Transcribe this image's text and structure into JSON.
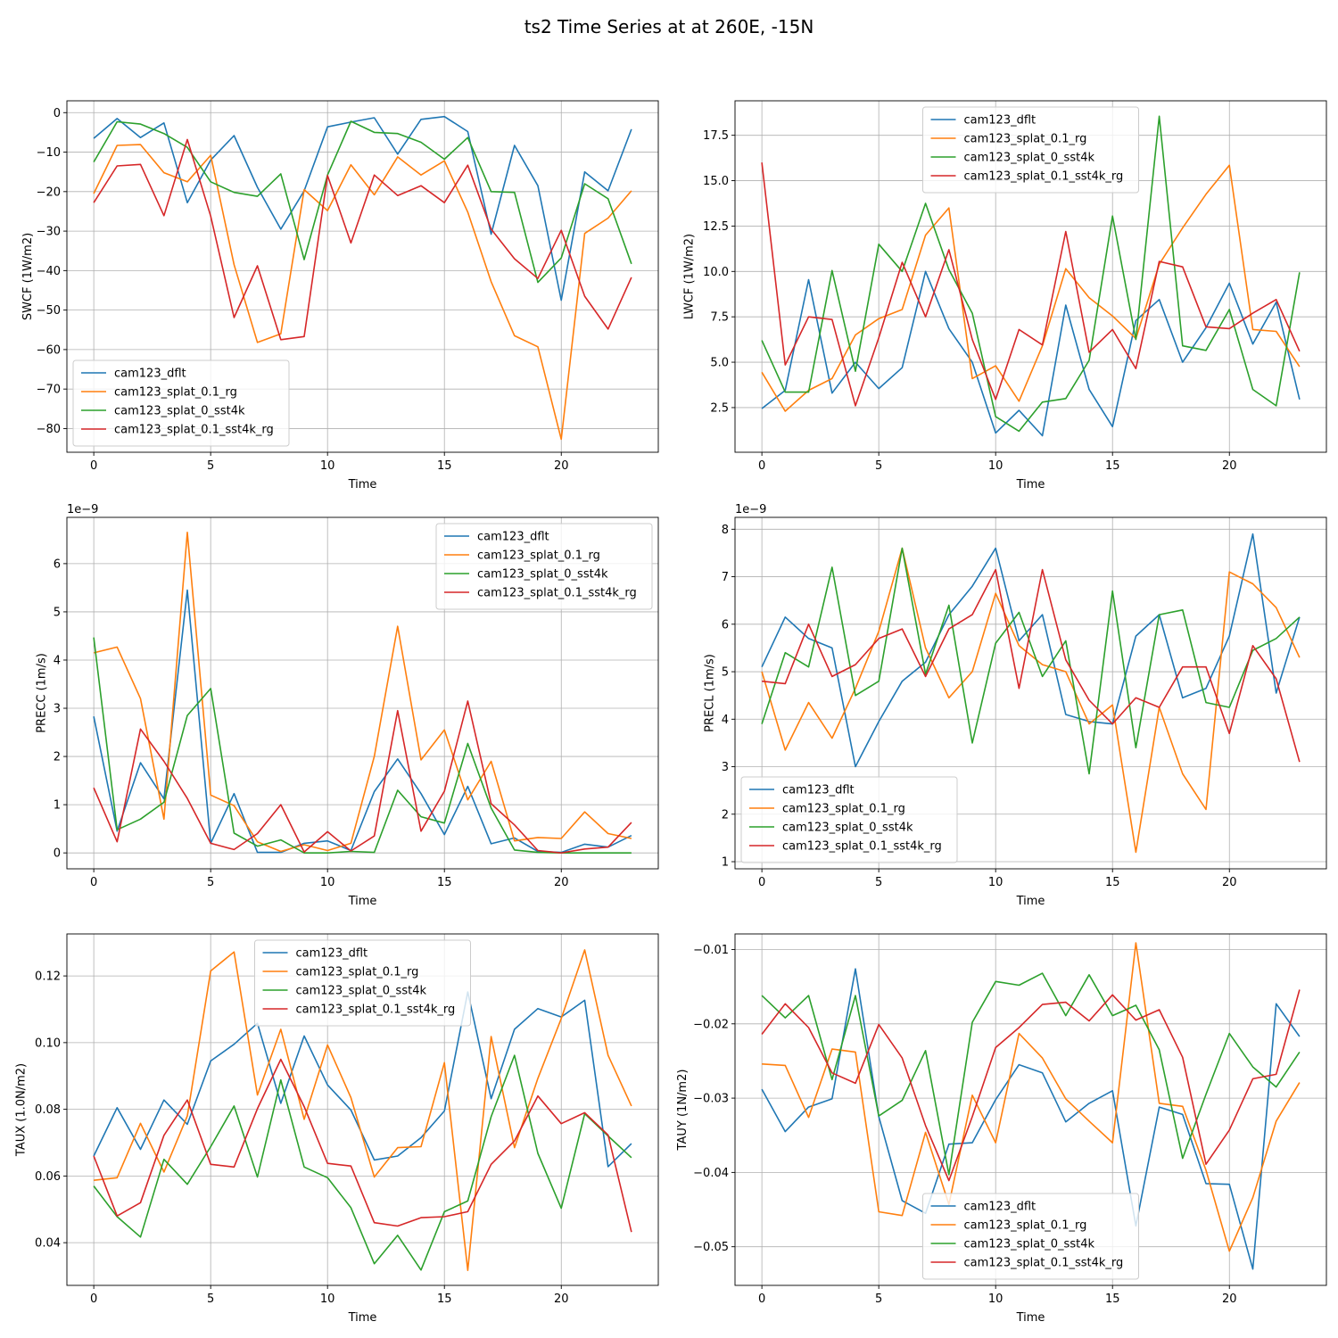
{
  "figure_title": "ts2 Time Series at at 260E, -15N",
  "colors": {
    "cam123_dflt": "#1f77b4",
    "cam123_splat_0.1_rg": "#ff7f0e",
    "cam123_splat_0_sst4k": "#2ca02c",
    "cam123_splat_0.1_sst4k_rg": "#d62728"
  },
  "chart_data": [
    {
      "type": "line",
      "title": "",
      "xlabel": "Time",
      "ylabel": "SWCF (1W/m2)",
      "xlim": [
        -1.15,
        24.15
      ],
      "ylim": [
        -86,
        3
      ],
      "xticks": [
        0,
        5,
        10,
        15,
        20
      ],
      "xtick_labels": [
        "0",
        "5",
        "10",
        "15",
        "20"
      ],
      "yticks": [
        0,
        -10,
        -20,
        -30,
        -40,
        -50,
        -60,
        -70,
        -80
      ],
      "ytick_labels": [
        "0",
        "−10",
        "−20",
        "−30",
        "−40",
        "−50",
        "−60",
        "−70",
        "−80"
      ],
      "offset_text": "",
      "legend_loc": "lower-left",
      "x": [
        0,
        1,
        2,
        3,
        4,
        5,
        6,
        7,
        8,
        9,
        10,
        11,
        12,
        13,
        14,
        15,
        16,
        17,
        18,
        19,
        20,
        21,
        22,
        23
      ],
      "series": [
        {
          "name": "cam123_dflt",
          "values": [
            -6.5,
            -1.5,
            -6.3,
            -2.6,
            -22.8,
            -12.0,
            -5.8,
            -18.9,
            -29.5,
            -19.8,
            -3.6,
            -2.4,
            -1.3,
            -10.5,
            -1.7,
            -1.0,
            -4.8,
            -30.8,
            -8.3,
            -18.5,
            -47.5,
            -15.0,
            -19.8,
            -4.2
          ]
        },
        {
          "name": "cam123_splat_0.1_rg",
          "values": [
            -20.5,
            -8.3,
            -8.1,
            -15.2,
            -17.5,
            -10.8,
            -38.5,
            -58.2,
            -56.0,
            -19.5,
            -24.8,
            -13.2,
            -20.8,
            -11.2,
            -15.8,
            -12.2,
            -25.2,
            -42.8,
            -56.5,
            -59.3,
            -82.7,
            -30.6,
            -26.7,
            -19.8
          ]
        },
        {
          "name": "cam123_splat_0_sst4k",
          "values": [
            -12.5,
            -2.3,
            -2.9,
            -5.3,
            -8.8,
            -17.5,
            -20.2,
            -21.2,
            -15.5,
            -37.2,
            -15.8,
            -2.2,
            -5.0,
            -5.3,
            -7.5,
            -11.8,
            -6.3,
            -20.0,
            -20.2,
            -43.0,
            -36.8,
            -18.0,
            -21.8,
            -38.3
          ]
        },
        {
          "name": "cam123_splat_0.1_sst4k_rg",
          "values": [
            -22.8,
            -13.5,
            -13.1,
            -26.1,
            -6.8,
            -26.2,
            -51.9,
            -38.8,
            -57.5,
            -56.7,
            -15.9,
            -33.0,
            -15.8,
            -21.0,
            -18.5,
            -22.8,
            -13.3,
            -29.5,
            -37.0,
            -42.0,
            -29.8,
            -46.5,
            -54.8,
            -41.7
          ]
        }
      ]
    },
    {
      "type": "line",
      "title": "",
      "xlabel": "Time",
      "ylabel": "LWCF (1W/m2)",
      "xlim": [
        -1.15,
        24.15
      ],
      "ylim": [
        0.04,
        19.4
      ],
      "xticks": [
        0,
        5,
        10,
        15,
        20
      ],
      "xtick_labels": [
        "0",
        "5",
        "10",
        "15",
        "20"
      ],
      "yticks": [
        2.5,
        5.0,
        7.5,
        10.0,
        12.5,
        15.0,
        17.5
      ],
      "ytick_labels": [
        "2.5",
        "5.0",
        "7.5",
        "10.0",
        "12.5",
        "15.0",
        "17.5"
      ],
      "offset_text": "",
      "legend_loc": "upper-center",
      "x": [
        0,
        1,
        2,
        3,
        4,
        5,
        6,
        7,
        8,
        9,
        10,
        11,
        12,
        13,
        14,
        15,
        16,
        17,
        18,
        19,
        20,
        21,
        22,
        23
      ],
      "series": [
        {
          "name": "cam123_dflt",
          "values": [
            2.45,
            3.45,
            9.55,
            3.3,
            5.0,
            3.55,
            4.7,
            10.0,
            6.85,
            5.0,
            1.1,
            2.35,
            0.95,
            8.15,
            3.5,
            1.45,
            7.3,
            8.45,
            5.0,
            6.9,
            9.35,
            6.0,
            8.3,
            2.95
          ]
        },
        {
          "name": "cam123_splat_0.1_rg",
          "values": [
            4.45,
            2.3,
            3.45,
            4.1,
            6.5,
            7.4,
            7.9,
            12.0,
            13.5,
            4.1,
            4.8,
            2.85,
            5.9,
            10.15,
            8.55,
            7.55,
            6.3,
            10.4,
            12.4,
            14.25,
            15.85,
            6.8,
            6.7,
            4.75
          ]
        },
        {
          "name": "cam123_splat_0_sst4k",
          "values": [
            6.2,
            3.35,
            3.35,
            10.05,
            4.5,
            11.5,
            10.0,
            13.75,
            10.1,
            7.7,
            2.0,
            1.2,
            2.8,
            3.0,
            5.1,
            13.05,
            6.25,
            18.55,
            5.9,
            5.65,
            7.9,
            3.5,
            2.6,
            9.95
          ]
        },
        {
          "name": "cam123_splat_0.1_sst4k_rg",
          "values": [
            16.0,
            4.85,
            7.5,
            7.35,
            2.6,
            6.35,
            10.5,
            7.5,
            11.2,
            6.25,
            2.95,
            6.8,
            5.95,
            12.2,
            5.55,
            6.8,
            4.65,
            10.55,
            10.25,
            6.95,
            6.85,
            7.7,
            8.45,
            5.6
          ]
        }
      ]
    },
    {
      "type": "line",
      "title": "",
      "xlabel": "Time",
      "ylabel": "PRECC (1m/s)",
      "xlim": [
        -1.15,
        24.15
      ],
      "ylim": [
        -0.33,
        6.96
      ],
      "xticks": [
        0,
        5,
        10,
        15,
        20
      ],
      "xtick_labels": [
        "0",
        "5",
        "10",
        "15",
        "20"
      ],
      "yticks": [
        0,
        1,
        2,
        3,
        4,
        5,
        6
      ],
      "ytick_labels": [
        "0",
        "1",
        "2",
        "3",
        "4",
        "5",
        "6"
      ],
      "offset_text": "1e−9",
      "legend_loc": "upper-right",
      "x": [
        0,
        1,
        2,
        3,
        4,
        5,
        6,
        7,
        8,
        9,
        10,
        11,
        12,
        13,
        14,
        15,
        16,
        17,
        18,
        19,
        20,
        21,
        22,
        23
      ],
      "series": [
        {
          "name": "cam123_dflt",
          "values": [
            2.83,
            0.45,
            1.87,
            1.12,
            5.45,
            0.2,
            1.23,
            0.01,
            0.01,
            0.2,
            0.25,
            0.05,
            1.27,
            1.95,
            1.23,
            0.38,
            1.38,
            0.19,
            0.31,
            0.03,
            0.01,
            0.18,
            0.12,
            0.36
          ]
        },
        {
          "name": "cam123_splat_0.1_rg",
          "values": [
            4.15,
            4.27,
            3.2,
            0.7,
            6.65,
            1.2,
            0.98,
            0.23,
            0.03,
            0.17,
            0.05,
            0.2,
            2.0,
            4.7,
            1.93,
            2.55,
            1.1,
            1.9,
            0.25,
            0.32,
            0.3,
            0.85,
            0.4,
            0.3
          ]
        },
        {
          "name": "cam123_splat_0_sst4k",
          "values": [
            4.47,
            0.48,
            0.7,
            1.05,
            2.85,
            3.41,
            0.41,
            0.14,
            0.27,
            0.0,
            0.0,
            0.03,
            0.01,
            1.3,
            0.75,
            0.62,
            2.27,
            0.93,
            0.06,
            0.01,
            0.0,
            0.0,
            0.0,
            0.0
          ]
        },
        {
          "name": "cam123_splat_0.1_sst4k_rg",
          "values": [
            1.35,
            0.23,
            2.57,
            1.9,
            1.13,
            0.2,
            0.07,
            0.4,
            1.0,
            0.02,
            0.44,
            0.04,
            0.35,
            2.95,
            0.45,
            1.28,
            3.15,
            1.02,
            0.58,
            0.05,
            0.0,
            0.08,
            0.12,
            0.63
          ]
        }
      ]
    },
    {
      "type": "line",
      "title": "",
      "xlabel": "Time",
      "ylabel": "PRECL (1m/s)",
      "xlim": [
        -1.15,
        24.15
      ],
      "ylim": [
        0.85,
        8.25
      ],
      "xticks": [
        0,
        5,
        10,
        15,
        20
      ],
      "xtick_labels": [
        "0",
        "5",
        "10",
        "15",
        "20"
      ],
      "yticks": [
        1,
        2,
        3,
        4,
        5,
        6,
        7,
        8
      ],
      "ytick_labels": [
        "1",
        "2",
        "3",
        "4",
        "5",
        "6",
        "7",
        "8"
      ],
      "offset_text": "1e−9",
      "legend_loc": "lower-left",
      "x": [
        0,
        1,
        2,
        3,
        4,
        5,
        6,
        7,
        8,
        9,
        10,
        11,
        12,
        13,
        14,
        15,
        16,
        17,
        18,
        19,
        20,
        21,
        22,
        23
      ],
      "series": [
        {
          "name": "cam123_dflt",
          "values": [
            5.1,
            6.15,
            5.7,
            5.5,
            3.0,
            3.95,
            4.8,
            5.2,
            6.2,
            6.8,
            7.6,
            5.65,
            6.2,
            4.1,
            3.95,
            3.9,
            5.75,
            6.2,
            4.45,
            4.65,
            5.75,
            7.9,
            4.55,
            6.15
          ]
        },
        {
          "name": "cam123_splat_0.1_rg",
          "values": [
            5.0,
            3.35,
            4.35,
            3.6,
            4.65,
            5.85,
            7.6,
            5.5,
            4.45,
            5.0,
            6.65,
            5.55,
            5.15,
            5.0,
            3.9,
            4.3,
            1.2,
            4.25,
            2.85,
            2.1,
            7.1,
            6.85,
            6.35,
            5.3
          ]
        },
        {
          "name": "cam123_splat_0_sst4k",
          "values": [
            3.9,
            5.4,
            5.1,
            7.2,
            4.5,
            4.8,
            7.6,
            4.95,
            6.4,
            3.5,
            5.6,
            6.25,
            4.9,
            5.65,
            2.85,
            6.7,
            3.4,
            6.2,
            6.3,
            4.35,
            4.25,
            5.45,
            5.7,
            6.15
          ]
        },
        {
          "name": "cam123_splat_0.1_sst4k_rg",
          "values": [
            4.8,
            4.75,
            6.0,
            4.9,
            5.15,
            5.7,
            5.9,
            4.9,
            5.9,
            6.2,
            7.15,
            4.65,
            7.15,
            5.25,
            4.4,
            3.9,
            4.45,
            4.25,
            5.1,
            5.1,
            3.7,
            5.55,
            4.85,
            3.1
          ]
        }
      ]
    },
    {
      "type": "line",
      "title": "",
      "xlabel": "Time",
      "ylabel": "TAUX (1.0N/m2)",
      "xlim": [
        -1.15,
        24.15
      ],
      "ylim": [
        0.0272,
        0.1326
      ],
      "xticks": [
        0,
        5,
        10,
        15,
        20
      ],
      "xtick_labels": [
        "0",
        "5",
        "10",
        "15",
        "20"
      ],
      "yticks": [
        0.04,
        0.06,
        0.08,
        0.1,
        0.12
      ],
      "ytick_labels": [
        "0.04",
        "0.06",
        "0.08",
        "0.10",
        "0.12"
      ],
      "offset_text": "",
      "legend_loc": "upper-center",
      "x": [
        0,
        1,
        2,
        3,
        4,
        5,
        6,
        7,
        8,
        9,
        10,
        11,
        12,
        13,
        14,
        15,
        16,
        17,
        18,
        19,
        20,
        21,
        22,
        23
      ],
      "series": [
        {
          "name": "cam123_dflt",
          "values": [
            0.066,
            0.0805,
            0.068,
            0.0828,
            0.0755,
            0.0945,
            0.0995,
            0.1058,
            0.0818,
            0.102,
            0.0873,
            0.0798,
            0.0648,
            0.066,
            0.0715,
            0.0795,
            0.1152,
            0.0832,
            0.104,
            0.1102,
            0.1077,
            0.1127,
            0.0628,
            0.0697
          ]
        },
        {
          "name": "cam123_splat_0.1_rg",
          "values": [
            0.0587,
            0.0595,
            0.0758,
            0.0612,
            0.078,
            0.1215,
            0.1272,
            0.0843,
            0.104,
            0.077,
            0.0993,
            0.0835,
            0.0597,
            0.0685,
            0.0688,
            0.094,
            0.0317,
            0.1018,
            0.0685,
            0.0893,
            0.1072,
            0.1278,
            0.0962,
            0.081
          ]
        },
        {
          "name": "cam123_splat_0_sst4k",
          "values": [
            0.057,
            0.0478,
            0.0417,
            0.065,
            0.0575,
            0.0688,
            0.081,
            0.0597,
            0.0888,
            0.0627,
            0.0595,
            0.0505,
            0.0337,
            0.0422,
            0.0318,
            0.0493,
            0.0525,
            0.0778,
            0.0962,
            0.0668,
            0.0503,
            0.0787,
            0.072,
            0.0655
          ]
        },
        {
          "name": "cam123_splat_0.1_sst4k_rg",
          "values": [
            0.066,
            0.048,
            0.052,
            0.0722,
            0.0828,
            0.0635,
            0.0627,
            0.0802,
            0.095,
            0.0808,
            0.0638,
            0.063,
            0.046,
            0.045,
            0.0475,
            0.0478,
            0.0493,
            0.0635,
            0.0705,
            0.084,
            0.0757,
            0.079,
            0.0723,
            0.0432
          ]
        }
      ]
    },
    {
      "type": "line",
      "title": "",
      "xlabel": "Time",
      "ylabel": "TAUY (1N/m2)",
      "xlim": [
        -1.15,
        24.15
      ],
      "ylim": [
        -0.0552,
        -0.0079
      ],
      "xticks": [
        0,
        5,
        10,
        15,
        20
      ],
      "xtick_labels": [
        "0",
        "5",
        "10",
        "15",
        "20"
      ],
      "yticks": [
        -0.01,
        -0.02,
        -0.03,
        -0.04,
        -0.05
      ],
      "ytick_labels": [
        "−0.01",
        "−0.02",
        "−0.03",
        "−0.04",
        "−0.05"
      ],
      "offset_text": "",
      "legend_loc": "lower-center",
      "x": [
        0,
        1,
        2,
        3,
        4,
        5,
        6,
        7,
        8,
        9,
        10,
        11,
        12,
        13,
        14,
        15,
        16,
        17,
        18,
        19,
        20,
        21,
        22,
        23
      ],
      "series": [
        {
          "name": "cam123_dflt",
          "values": [
            -0.0288,
            -0.0345,
            -0.0312,
            -0.0301,
            -0.0126,
            -0.0325,
            -0.0438,
            -0.0455,
            -0.0362,
            -0.036,
            -0.0302,
            -0.0255,
            -0.0266,
            -0.0332,
            -0.0307,
            -0.029,
            -0.0472,
            -0.0312,
            -0.0322,
            -0.0415,
            -0.0416,
            -0.053,
            -0.0173,
            -0.0217
          ]
        },
        {
          "name": "cam123_splat_0.1_rg",
          "values": [
            -0.0254,
            -0.0256,
            -0.0326,
            -0.0234,
            -0.0238,
            -0.0453,
            -0.0458,
            -0.0346,
            -0.0443,
            -0.0296,
            -0.036,
            -0.0213,
            -0.0246,
            -0.0301,
            -0.0331,
            -0.036,
            -0.0091,
            -0.0307,
            -0.0311,
            -0.0397,
            -0.0506,
            -0.0434,
            -0.0331,
            -0.0279
          ]
        },
        {
          "name": "cam123_splat_0_sst4k",
          "values": [
            -0.0162,
            -0.0192,
            -0.0162,
            -0.0275,
            -0.0162,
            -0.0324,
            -0.0303,
            -0.0236,
            -0.0403,
            -0.0198,
            -0.0143,
            -0.0148,
            -0.0132,
            -0.0189,
            -0.0134,
            -0.0189,
            -0.0175,
            -0.0235,
            -0.0381,
            -0.0295,
            -0.0213,
            -0.0258,
            -0.0285,
            -0.0238
          ]
        },
        {
          "name": "cam123_splat_0.1_sst4k_rg",
          "values": [
            -0.0214,
            -0.0173,
            -0.0205,
            -0.0266,
            -0.028,
            -0.0201,
            -0.0246,
            -0.0337,
            -0.0411,
            -0.0325,
            -0.0232,
            -0.0205,
            -0.0174,
            -0.0171,
            -0.0196,
            -0.0161,
            -0.0195,
            -0.0181,
            -0.0245,
            -0.0389,
            -0.0343,
            -0.0274,
            -0.0268,
            -0.0154
          ]
        }
      ]
    }
  ]
}
